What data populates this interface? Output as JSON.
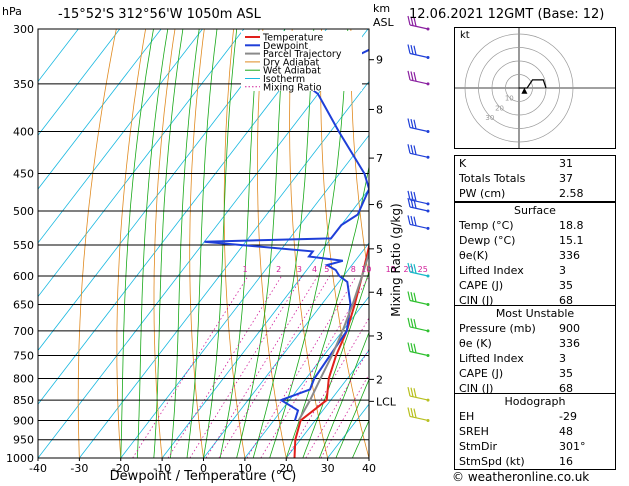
{
  "header": {
    "pressure_unit": "hPa",
    "location": "-15°52'S 312°56'W 1050m ASL",
    "km_unit": "km",
    "asl": "ASL",
    "datetime": "12.06.2021 12GMT (Base: 12)"
  },
  "chart_data": {
    "type": "line",
    "title": "-15°52'S 312°56'W 1050m ASL",
    "xlabel": "Dewpoint / Temperature (°C)",
    "ylabel": "hPa",
    "x_ticks": [
      -40,
      -30,
      -20,
      -10,
      0,
      10,
      20,
      30,
      40
    ],
    "y_ticks": [
      300,
      350,
      400,
      450,
      500,
      550,
      600,
      650,
      700,
      750,
      800,
      850,
      900,
      950,
      1000
    ],
    "xlim": [
      -40,
      40
    ],
    "ylim": [
      1000,
      300
    ],
    "y_scale": "log",
    "km_ticks": [
      {
        "km": "9",
        "p": 327
      },
      {
        "km": "8",
        "p": 376
      },
      {
        "km": "7",
        "p": 431
      },
      {
        "km": "6",
        "p": 491
      },
      {
        "km": "5",
        "p": 556
      },
      {
        "km": "4",
        "p": 628
      },
      {
        "km": "3",
        "p": 710
      },
      {
        "km": "2",
        "p": 802
      },
      {
        "km": "LCL",
        "p": 853
      }
    ],
    "right_axis_label": "Mixing Ratio (g/kg)",
    "mixing_ratio_labels": [
      "1",
      "2",
      "3",
      "4",
      "5",
      "8",
      "10",
      "15",
      "20",
      "25"
    ],
    "mixing_ratio_values": [
      1,
      2,
      3,
      4,
      5,
      8,
      10,
      15,
      20,
      25
    ],
    "legend": [
      "Temperature",
      "Dewpoint",
      "Parcel Trajectory",
      "Dry Adiabat",
      "Wet Adiabat",
      "Isotherm",
      "Mixing Ratio"
    ],
    "legend_position": "top-right",
    "series": [
      {
        "name": "Temperature",
        "color": "#e0201b",
        "points": [
          [
            1000,
            22
          ],
          [
            950,
            18.8
          ],
          [
            900,
            16.5
          ],
          [
            850,
            19
          ],
          [
            800,
            15.5
          ],
          [
            750,
            13
          ],
          [
            700,
            11
          ],
          [
            650,
            8
          ],
          [
            600,
            4.5
          ],
          [
            550,
            0.5
          ],
          [
            500,
            -4
          ],
          [
            450,
            -9
          ],
          [
            400,
            -15
          ],
          [
            350,
            -23
          ],
          [
            300,
            -32
          ]
        ]
      },
      {
        "name": "Dewpoint",
        "color": "#1f3fd8",
        "points": [
          [
            900,
            15.1
          ],
          [
            875,
            14
          ],
          [
            850,
            8
          ],
          [
            825,
            13
          ],
          [
            800,
            12
          ],
          [
            700,
            11
          ],
          [
            650,
            7
          ],
          [
            610,
            2
          ],
          [
            600,
            -1
          ],
          [
            590,
            -3
          ],
          [
            582,
            -6
          ],
          [
            575,
            -3
          ],
          [
            568,
            -12
          ],
          [
            560,
            -12
          ],
          [
            545,
            -40
          ],
          [
            540,
            -10
          ],
          [
            520,
            -10
          ],
          [
            505,
            -8
          ],
          [
            470,
            -10
          ],
          [
            450,
            -14
          ],
          [
            400,
            -28
          ],
          [
            360,
            -40
          ],
          [
            350,
            -45
          ],
          [
            330,
            -40
          ],
          [
            310,
            -33
          ],
          [
            300,
            -28
          ]
        ]
      },
      {
        "name": "Parcel Trajectory",
        "color": "#8a8a8a",
        "points": [
          [
            900,
            16
          ],
          [
            850,
            15
          ],
          [
            800,
            13.5
          ],
          [
            750,
            12
          ],
          [
            700,
            10
          ],
          [
            650,
            7.5
          ],
          [
            600,
            4.5
          ],
          [
            550,
            1
          ],
          [
            500,
            -3
          ],
          [
            450,
            -8
          ],
          [
            400,
            -14
          ],
          [
            350,
            -22
          ],
          [
            300,
            -31
          ]
        ]
      }
    ],
    "wind_barbs": [
      {
        "p": 300,
        "color": "#8a1fa0"
      },
      {
        "p": 325,
        "color": "#1f3fd8"
      },
      {
        "p": 350,
        "color": "#8a1fa0"
      },
      {
        "p": 400,
        "color": "#1f3fd8"
      },
      {
        "p": 430,
        "color": "#1f3fd8"
      },
      {
        "p": 490,
        "color": "#1f3fd8"
      },
      {
        "p": 500,
        "color": "#1f3fd8"
      },
      {
        "p": 525,
        "color": "#1f3fd8"
      },
      {
        "p": 600,
        "color": "#18b8c8"
      },
      {
        "p": 650,
        "color": "#30c030"
      },
      {
        "p": 700,
        "color": "#30c030"
      },
      {
        "p": 750,
        "color": "#30c030"
      },
      {
        "p": 850,
        "color": "#b8c020"
      },
      {
        "p": 900,
        "color": "#b8c020"
      }
    ]
  },
  "hodograph": {
    "label": "kt",
    "rings": [
      10,
      20,
      30,
      40
    ],
    "ring_labels": [
      "10",
      "20",
      "30"
    ],
    "trace_uv": [
      [
        0,
        0
      ],
      [
        3,
        0
      ],
      [
        5,
        3
      ],
      [
        9,
        3
      ],
      [
        10,
        0
      ]
    ],
    "storm_uv": [
      2,
      -1
    ]
  },
  "indices": {
    "rows": [
      {
        "label": "K",
        "value": "31"
      },
      {
        "label": "Totals Totals",
        "value": "37"
      },
      {
        "label": "PW (cm)",
        "value": "2.58"
      }
    ]
  },
  "surface": {
    "title": "Surface",
    "rows": [
      {
        "label": "Temp (°C)",
        "value": "18.8"
      },
      {
        "label": "Dewp (°C)",
        "value": "15.1"
      },
      {
        "label": "θe(K)",
        "value": "336"
      },
      {
        "label": "Lifted Index",
        "value": "3"
      },
      {
        "label": "CAPE (J)",
        "value": "35"
      },
      {
        "label": "CIN (J)",
        "value": "68"
      }
    ]
  },
  "most_unstable": {
    "title": "Most Unstable",
    "rows": [
      {
        "label": "Pressure (mb)",
        "value": "900"
      },
      {
        "label": "θe (K)",
        "value": "336"
      },
      {
        "label": "Lifted Index",
        "value": "3"
      },
      {
        "label": "CAPE (J)",
        "value": "35"
      },
      {
        "label": "CIN (J)",
        "value": "68"
      }
    ]
  },
  "hodograph_table": {
    "title": "Hodograph",
    "rows": [
      {
        "label": "EH",
        "value": "-29"
      },
      {
        "label": "SREH",
        "value": "48"
      },
      {
        "label": "StmDir",
        "value": "301°"
      },
      {
        "label": "StmSpd (kt)",
        "value": "16"
      }
    ]
  },
  "copyright": "© weatheronline.co.uk",
  "colors": {
    "temperature": "#e0201b",
    "dewpoint": "#1f3fd8",
    "parcel": "#8a8a8a",
    "dry_adiabat": "#e08a20",
    "wet_adiabat": "#18a818",
    "isotherm": "#18b8e0",
    "mixing_ratio": "#d0209a"
  }
}
